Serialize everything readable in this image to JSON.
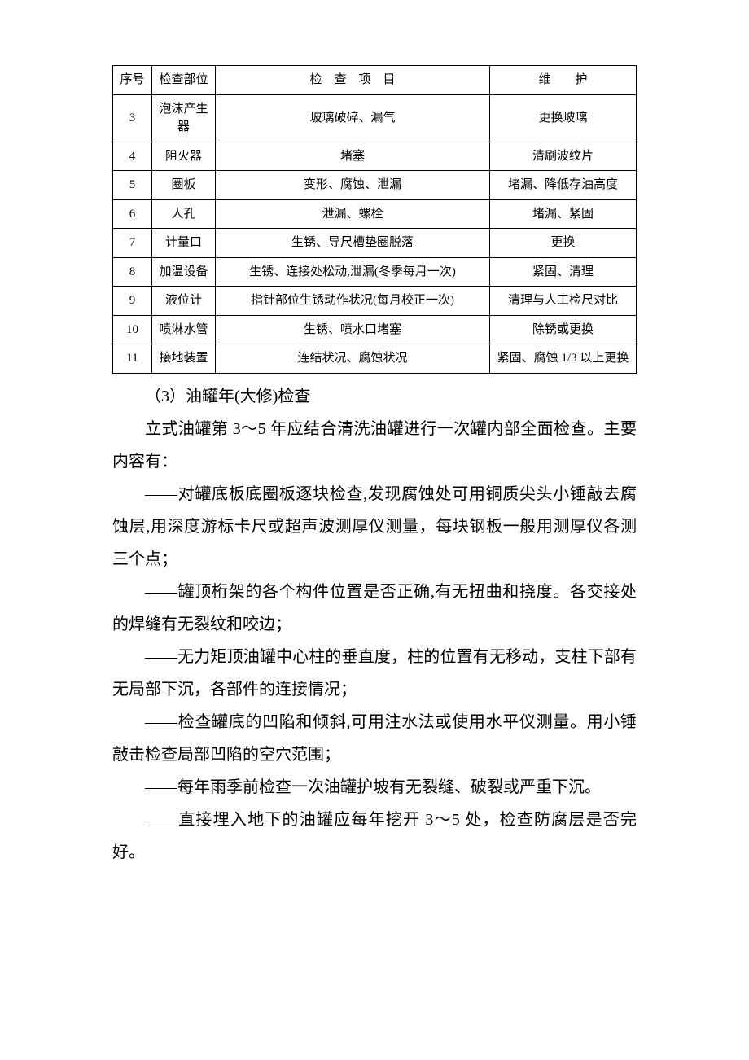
{
  "table": {
    "headers": {
      "seq": "序号",
      "part": "检查部位",
      "item": "检 查 项 目",
      "maint": "维  护"
    },
    "rows": [
      {
        "seq": "3",
        "part": "泡沫产生器",
        "item": "玻璃破碎、漏气",
        "maint": "更换玻璃"
      },
      {
        "seq": "4",
        "part": "阻火器",
        "item": "堵塞",
        "maint": "清刷波纹片"
      },
      {
        "seq": "5",
        "part": "圈板",
        "item": "变形、腐蚀、泄漏",
        "maint": "堵漏、降低存油高度"
      },
      {
        "seq": "6",
        "part": "人孔",
        "item": "泄漏、螺栓",
        "maint": "堵漏、紧固"
      },
      {
        "seq": "7",
        "part": "计量口",
        "item": "生锈、导尺槽垫圈脱落",
        "maint": "更换"
      },
      {
        "seq": "8",
        "part": "加温设备",
        "item": "生锈、连接处松动,泄漏(冬季每月一次)",
        "maint": "紧固、清理"
      },
      {
        "seq": "9",
        "part": "液位计",
        "item": "指针部位生锈动作状况(每月校正一次)",
        "maint": "清理与人工检尺对比"
      },
      {
        "seq": "10",
        "part": "喷淋水管",
        "item": "生锈、喷水口堵塞",
        "maint": "除锈或更换"
      },
      {
        "seq": "11",
        "part": "接地装置",
        "item": "连结状况、腐蚀状况",
        "maint": "紧固、腐蚀 1/3 以上更换"
      }
    ]
  },
  "paragraphs": {
    "p1": "（3）油罐年(大修)检查",
    "p2": "立式油罐第 3～5 年应结合清洗油罐进行一次罐内部全面检查。主要内容有：",
    "p3": "——对罐底板底圈板逐块检查,发现腐蚀处可用铜质尖头小锤敲去腐蚀层,用深度游标卡尺或超声波测厚仪测量，每块钢板一般用测厚仪各测三个点；",
    "p4": "——罐顶桁架的各个构件位置是否正确,有无扭曲和挠度。各交接处的焊缝有无裂纹和咬边；",
    "p5": "——无力矩顶油罐中心柱的垂直度，柱的位置有无移动，支柱下部有无局部下沉，各部件的连接情况；",
    "p6": "——检查罐底的凹陷和倾斜,可用注水法或使用水平仪测量。用小锤敲击检查局部凹陷的空穴范围；",
    "p7": "——每年雨季前检查一次油罐护坡有无裂缝、破裂或严重下沉。",
    "p8": "——直接埋入地下的油罐应每年挖开 3～5 处，检查防腐层是否完好。"
  }
}
